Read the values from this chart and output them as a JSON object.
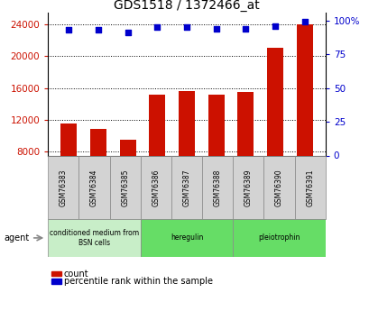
{
  "title": "GDS1518 / 1372466_at",
  "samples": [
    "GSM76383",
    "GSM76384",
    "GSM76385",
    "GSM76386",
    "GSM76387",
    "GSM76388",
    "GSM76389",
    "GSM76390",
    "GSM76391"
  ],
  "counts": [
    11500,
    10800,
    9500,
    15200,
    15600,
    15100,
    15500,
    21000,
    24000
  ],
  "percentiles": [
    93,
    93,
    91,
    95,
    95,
    94,
    94,
    96,
    99
  ],
  "groups": [
    {
      "label": "conditioned medium from\nBSN cells",
      "start": 0,
      "end": 3,
      "color": "#c8eec8"
    },
    {
      "label": "heregulin",
      "start": 3,
      "end": 6,
      "color": "#66dd66"
    },
    {
      "label": "pleiotrophin",
      "start": 6,
      "end": 9,
      "color": "#66dd66"
    }
  ],
  "bar_color": "#cc1100",
  "dot_color": "#0000cc",
  "ylim_left": [
    7500,
    25500
  ],
  "yticks_left": [
    8000,
    12000,
    16000,
    20000,
    24000
  ],
  "ylim_right": [
    0,
    106
  ],
  "yticks_right": [
    0,
    25,
    50,
    75,
    100
  ],
  "yticklabels_right": [
    "0",
    "25",
    "50",
    "75",
    "100%"
  ],
  "bg_color": "#ffffff",
  "plot_bg_color": "#ffffff",
  "tick_color_left": "#cc1100",
  "tick_color_right": "#0000cc",
  "agent_label": "agent",
  "legend_count_label": "count",
  "legend_percentile_label": "percentile rank within the sample",
  "cell_gray": "#d3d3d3"
}
